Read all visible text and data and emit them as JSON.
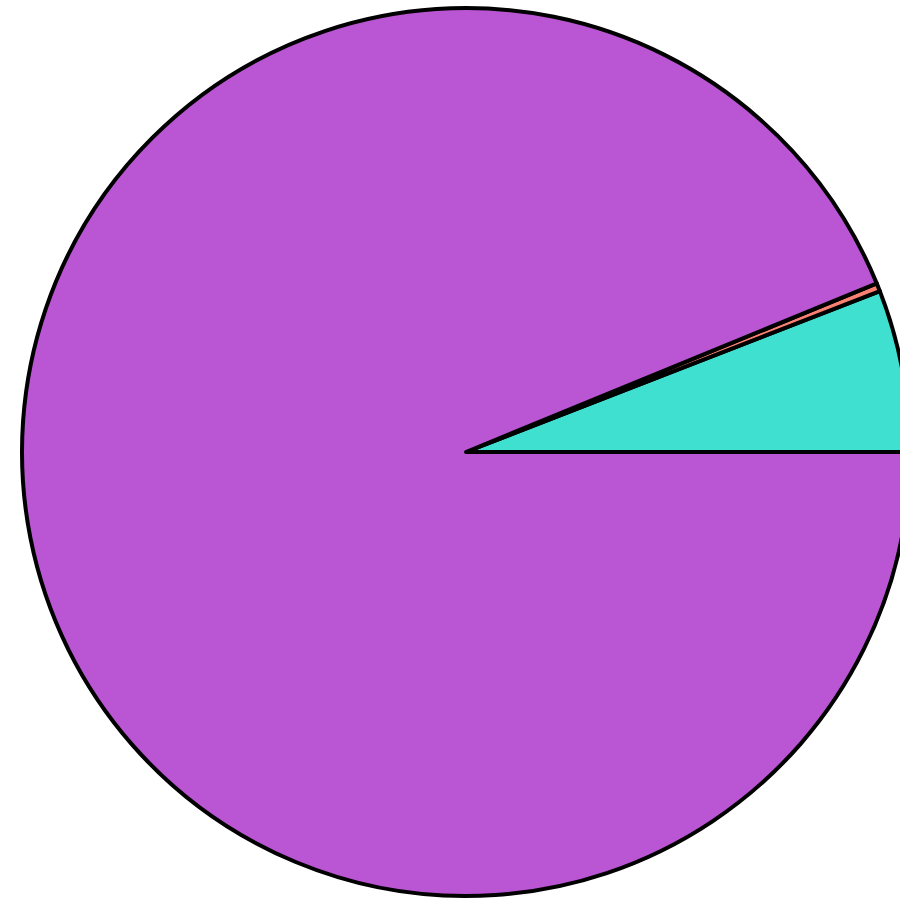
{
  "chart_data": {
    "type": "pie",
    "categories": [
      null,
      null,
      null
    ],
    "values": [
      5.9,
      0.3,
      93.8
    ],
    "colors": [
      "#40e0d0",
      "#fa8072",
      "#ba55d3"
    ]
  }
}
